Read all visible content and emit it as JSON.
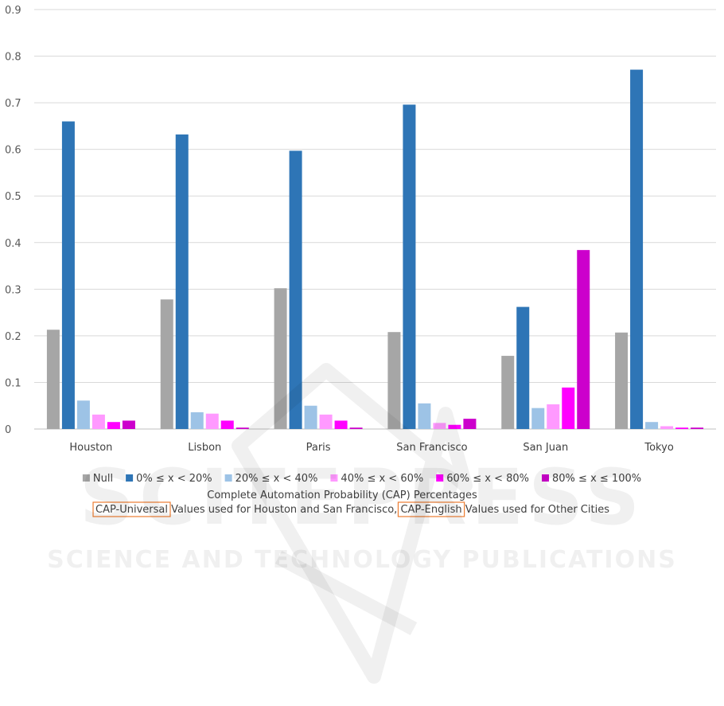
{
  "chart_data": {
    "type": "bar",
    "title": "",
    "xlabel": "Complete Automation Probability (CAP) Percentages",
    "ylabel": "",
    "ylim": [
      0,
      0.9
    ],
    "yticks": [
      "0",
      "0.1",
      "0.2",
      "0.3",
      "0.4",
      "0.5",
      "0.6",
      "0.7",
      "0.8",
      "0.9"
    ],
    "grid": true,
    "legend_position": "bottom",
    "categories": [
      "Houston",
      "Lisbon",
      "Paris",
      "San Francisco",
      "San Juan",
      "Tokyo"
    ],
    "series": [
      {
        "name": "Null",
        "color": "#a6a6a6",
        "values": [
          0.213,
          0.278,
          0.302,
          0.208,
          0.157,
          0.207
        ]
      },
      {
        "name": "0% ≤ x < 20%",
        "color": "#2e75b6",
        "values": [
          0.66,
          0.632,
          0.597,
          0.696,
          0.262,
          0.771
        ]
      },
      {
        "name": "20% ≤ x < 40%",
        "color": "#9dc3e6",
        "values": [
          0.061,
          0.036,
          0.05,
          0.055,
          0.045,
          0.015
        ]
      },
      {
        "name": "40% ≤ x < 60%",
        "color": "#ff99ff",
        "values": [
          0.031,
          0.033,
          0.031,
          0.013,
          0.053,
          0.006
        ]
      },
      {
        "name": "60% ≤ x < 80%",
        "color": "#ff00ff",
        "values": [
          0.015,
          0.018,
          0.018,
          0.009,
          0.089,
          0.003
        ]
      },
      {
        "name": "80% ≤ x ≤ 100%",
        "color": "#cc00cc",
        "values": [
          0.018,
          0.003,
          0.003,
          0.022,
          0.384,
          0.003
        ]
      }
    ],
    "note": {
      "part1": "CAP-Universal",
      "part2": " Values used for Houston and San Francisco, ",
      "part3": "CAP-English",
      "part4": " Values used for Other Cities"
    },
    "highlight_box_color": "#ed7d31"
  },
  "watermark": {
    "line1": "SCITEPRESS",
    "line2": "SCIENCE AND TECHNOLOGY PUBLICATIONS"
  }
}
